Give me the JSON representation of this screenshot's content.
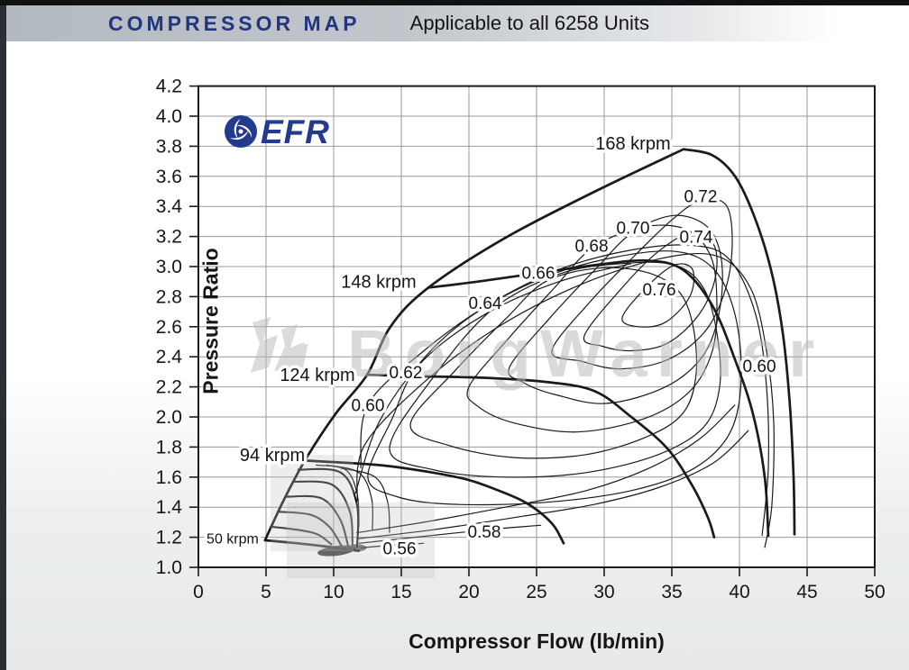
{
  "header": {
    "title": "COMPRESSOR MAP",
    "subtitle": "Applicable to all 6258 Units"
  },
  "logo": {
    "text": "EFR",
    "color": "#233a8f"
  },
  "watermark": {
    "text": "BorgWarner",
    "color": "#b7babb"
  },
  "colors": {
    "line": "#1a1a1a",
    "grid": "#989898",
    "accent_navy": "#23357e",
    "page_gray": "#e7eae9"
  },
  "chart_data": {
    "type": "line",
    "title": "Compressor Map (EFR 6258)",
    "xlabel": "Compressor Flow (lb/min)",
    "ylabel": "Pressure Ratio",
    "xlim": [
      0,
      50
    ],
    "ylim": [
      1.0,
      4.2
    ],
    "grid": true,
    "x_ticks": [
      "0",
      "5",
      "10",
      "15",
      "20",
      "25",
      "30",
      "35",
      "40",
      "45",
      "50"
    ],
    "y_ticks": [
      "4.2",
      "4.0",
      "3.8",
      "3.6",
      "3.4",
      "3.2",
      "3.0",
      "2.8",
      "2.6",
      "2.4",
      "2.2",
      "2.0",
      "1.8",
      "1.6",
      "1.4",
      "1.2",
      "1.0"
    ],
    "speed_lines": [
      {
        "name": "surge-line",
        "label": null,
        "points": [
          [
            4.93,
            1.18
          ],
          [
            6.27,
            1.44
          ],
          [
            7.87,
            1.71
          ],
          [
            10.13,
            2.02
          ],
          [
            12.47,
            2.28
          ],
          [
            14.2,
            2.6
          ],
          [
            17.0,
            2.86
          ],
          [
            22.67,
            3.19
          ],
          [
            29.33,
            3.5
          ],
          [
            35.87,
            3.78
          ]
        ]
      },
      {
        "name": "50-krpm",
        "label": "50 krpm",
        "label_pos": [
          2.53,
          1.2
        ],
        "small": true,
        "points": [
          [
            4.93,
            1.18
          ],
          [
            7.33,
            1.16
          ],
          [
            9.33,
            1.14
          ],
          [
            11.0,
            1.12
          ],
          [
            11.87,
            1.11
          ]
        ]
      },
      {
        "name": "94-krpm",
        "label": "94 krpm",
        "label_pos": [
          5.47,
          1.75
        ],
        "points": [
          [
            7.87,
            1.71
          ],
          [
            13.33,
            1.68
          ],
          [
            17.33,
            1.63
          ],
          [
            20.0,
            1.58
          ],
          [
            22.2,
            1.51
          ],
          [
            24.0,
            1.44
          ],
          [
            25.33,
            1.36
          ],
          [
            26.33,
            1.27
          ],
          [
            27.0,
            1.16
          ]
        ]
      },
      {
        "name": "124-krpm",
        "label": "124 krpm",
        "label_pos": [
          8.8,
          2.28
        ],
        "points": [
          [
            12.47,
            2.28
          ],
          [
            16.67,
            2.27
          ],
          [
            21.33,
            2.26
          ],
          [
            26.0,
            2.23
          ],
          [
            29.33,
            2.17
          ],
          [
            32.0,
            2.0
          ],
          [
            34.67,
            1.79
          ],
          [
            36.53,
            1.54
          ],
          [
            37.67,
            1.33
          ],
          [
            38.13,
            1.2
          ]
        ]
      },
      {
        "name": "148-krpm",
        "label": "148 krpm",
        "label_pos": [
          13.33,
          2.9
        ],
        "points": [
          [
            17.0,
            2.86
          ],
          [
            20.67,
            2.9
          ],
          [
            25.33,
            2.96
          ],
          [
            29.33,
            3.01
          ],
          [
            33.13,
            3.04
          ],
          [
            35.8,
            2.98
          ],
          [
            38.0,
            2.74
          ],
          [
            39.67,
            2.38
          ],
          [
            41.0,
            2.02
          ],
          [
            41.87,
            1.6
          ],
          [
            42.13,
            1.21
          ]
        ]
      },
      {
        "name": "168-krpm",
        "label": "168 krpm",
        "label_pos": [
          32.13,
          3.82
        ],
        "points": [
          [
            35.87,
            3.78
          ],
          [
            38.0,
            3.74
          ],
          [
            39.67,
            3.6
          ],
          [
            41.07,
            3.34
          ],
          [
            42.33,
            2.98
          ],
          [
            43.2,
            2.56
          ],
          [
            43.73,
            2.08
          ],
          [
            44.0,
            1.6
          ],
          [
            44.07,
            1.22
          ]
        ]
      }
    ],
    "minor_speed_lines": [
      [
        [
          5.4,
          1.27
        ],
        [
          7.33,
          1.25
        ],
        [
          8.8,
          1.22
        ],
        [
          9.87,
          1.15
        ]
      ],
      [
        [
          5.93,
          1.37
        ],
        [
          8.27,
          1.35
        ],
        [
          9.67,
          1.27
        ],
        [
          10.6,
          1.14
        ]
      ],
      [
        [
          6.47,
          1.47
        ],
        [
          9.07,
          1.46
        ],
        [
          10.47,
          1.32
        ],
        [
          11.07,
          1.14
        ]
      ],
      [
        [
          6.93,
          1.57
        ],
        [
          9.87,
          1.55
        ],
        [
          11.2,
          1.37
        ],
        [
          11.4,
          1.14
        ]
      ],
      [
        [
          7.33,
          1.65
        ],
        [
          10.53,
          1.63
        ],
        [
          11.73,
          1.41
        ],
        [
          11.73,
          1.13
        ]
      ]
    ],
    "cluster_hooks": [
      [
        [
          8.67,
          1.68
        ],
        [
          10.87,
          1.65
        ],
        [
          11.73,
          1.49
        ],
        [
          11.87,
          1.27
        ]
      ],
      [
        [
          9.47,
          1.68
        ],
        [
          11.87,
          1.63
        ],
        [
          12.8,
          1.46
        ],
        [
          12.87,
          1.25
        ]
      ],
      [
        [
          10.53,
          1.66
        ],
        [
          13.07,
          1.6
        ],
        [
          14.0,
          1.43
        ],
        [
          14.13,
          1.23
        ]
      ]
    ],
    "efficiency_contours": [
      {
        "value": 0.56,
        "part": "fan-1",
        "closed": false,
        "points": [
          [
            12.0,
            1.13
          ],
          [
            14.67,
            1.15
          ],
          [
            16.67,
            1.16
          ]
        ]
      },
      {
        "value": 0.56,
        "part": "fan-2",
        "closed": false,
        "points": [
          [
            11.87,
            1.16
          ],
          [
            16.0,
            1.2
          ],
          [
            21.33,
            1.25
          ],
          [
            25.33,
            1.28
          ]
        ]
      },
      {
        "value": 0.56,
        "part": "upper",
        "closed": false,
        "points": [
          [
            11.6,
            1.49
          ],
          [
            13.33,
            1.96
          ],
          [
            16.67,
            2.38
          ],
          [
            21.33,
            2.69
          ],
          [
            26.67,
            2.9
          ],
          [
            32.0,
            3.02
          ]
        ]
      },
      {
        "value": 0.58,
        "part": "bottom",
        "closed": false,
        "points": [
          [
            11.73,
            1.19
          ],
          [
            17.33,
            1.25
          ],
          [
            24.0,
            1.34
          ],
          [
            29.33,
            1.42
          ],
          [
            34.0,
            1.53
          ],
          [
            38.0,
            1.69
          ],
          [
            40.67,
            1.91
          ]
        ]
      },
      {
        "value": 0.58,
        "part": "upper-flank",
        "closed": false,
        "points": [
          [
            11.73,
            1.44
          ],
          [
            12.27,
            1.81
          ],
          [
            16.67,
            2.23
          ],
          [
            22.0,
            2.59
          ],
          [
            28.0,
            2.87
          ],
          [
            34.0,
            3.05
          ],
          [
            38.33,
            3.07
          ],
          [
            40.8,
            2.86
          ],
          [
            42.0,
            2.44
          ],
          [
            42.53,
            1.96
          ],
          [
            42.4,
            1.42
          ],
          [
            41.87,
            1.13
          ]
        ]
      },
      {
        "value": 0.6,
        "part": "bottom",
        "closed": false,
        "points": [
          [
            11.67,
            1.23
          ],
          [
            16.67,
            1.3
          ],
          [
            22.67,
            1.4
          ],
          [
            28.67,
            1.51
          ],
          [
            33.33,
            1.66
          ],
          [
            37.0,
            1.85
          ],
          [
            39.67,
            2.08
          ]
        ]
      },
      {
        "value": 0.6,
        "part": "upper-flank",
        "closed": false,
        "points": [
          [
            12.0,
            1.66
          ],
          [
            12.53,
            2.08
          ],
          [
            16.67,
            2.44
          ],
          [
            21.33,
            2.74
          ],
          [
            26.67,
            2.98
          ],
          [
            32.0,
            3.11
          ],
          [
            36.67,
            3.14
          ],
          [
            39.33,
            3.04
          ],
          [
            41.2,
            2.68
          ],
          [
            42.0,
            2.2
          ],
          [
            42.13,
            1.66
          ],
          [
            41.67,
            1.21
          ]
        ]
      },
      {
        "value": 0.62,
        "closed": true,
        "points": [
          [
            12.53,
            1.6
          ],
          [
            14.33,
            1.99
          ],
          [
            16.13,
            2.33
          ],
          [
            20.0,
            2.66
          ],
          [
            25.33,
            2.92
          ],
          [
            30.67,
            3.06
          ],
          [
            35.33,
            3.1
          ],
          [
            38.13,
            2.98
          ],
          [
            39.67,
            2.68
          ],
          [
            40.13,
            2.26
          ],
          [
            39.33,
            1.9
          ],
          [
            36.67,
            1.66
          ],
          [
            32.0,
            1.51
          ],
          [
            25.33,
            1.43
          ],
          [
            18.67,
            1.42
          ],
          [
            14.67,
            1.47
          ]
        ]
      },
      {
        "value": 0.64,
        "closed": true,
        "points": [
          [
            14.13,
            1.79
          ],
          [
            17.33,
            2.26
          ],
          [
            21.67,
            2.71
          ],
          [
            26.67,
            2.95
          ],
          [
            31.33,
            3.02
          ],
          [
            35.2,
            3.01
          ],
          [
            37.33,
            2.86
          ],
          [
            38.33,
            2.56
          ],
          [
            38.53,
            2.2
          ],
          [
            37.33,
            1.93
          ],
          [
            34.0,
            1.75
          ],
          [
            28.67,
            1.63
          ],
          [
            22.67,
            1.6
          ],
          [
            17.33,
            1.65
          ]
        ]
      },
      {
        "value": 0.66,
        "closed": true,
        "points": [
          [
            15.67,
            1.95
          ],
          [
            19.0,
            2.31
          ],
          [
            22.8,
            2.66
          ],
          [
            25.67,
            2.9
          ],
          [
            29.67,
            2.99
          ],
          [
            33.2,
            2.96
          ],
          [
            35.47,
            2.84
          ],
          [
            36.53,
            2.62
          ],
          [
            36.8,
            2.29
          ],
          [
            35.87,
            2.03
          ],
          [
            33.2,
            1.87
          ],
          [
            28.67,
            1.75
          ],
          [
            23.33,
            1.73
          ],
          [
            18.53,
            1.81
          ]
        ]
      },
      {
        "value": 0.68,
        "closed": true,
        "points": [
          [
            20.0,
            2.2
          ],
          [
            23.0,
            2.53
          ],
          [
            26.33,
            2.86
          ],
          [
            29.07,
            3.12
          ],
          [
            32.67,
            3.26
          ],
          [
            36.0,
            3.25
          ],
          [
            37.87,
            3.07
          ],
          [
            38.33,
            2.77
          ],
          [
            38.0,
            2.44
          ],
          [
            36.33,
            2.17
          ],
          [
            33.0,
            1.99
          ],
          [
            28.0,
            1.9
          ],
          [
            23.33,
            1.96
          ],
          [
            20.67,
            2.07
          ]
        ]
      },
      {
        "value": 0.7,
        "closed": true,
        "points": [
          [
            23.0,
            2.33
          ],
          [
            26.0,
            2.66
          ],
          [
            29.33,
            2.98
          ],
          [
            32.13,
            3.23
          ],
          [
            35.2,
            3.34
          ],
          [
            37.67,
            3.26
          ],
          [
            38.67,
            3.04
          ],
          [
            38.53,
            2.71
          ],
          [
            37.33,
            2.41
          ],
          [
            34.53,
            2.2
          ],
          [
            30.13,
            2.09
          ],
          [
            26.33,
            2.15
          ],
          [
            24.0,
            2.23
          ]
        ]
      },
      {
        "value": 0.72,
        "closed": true,
        "points": [
          [
            26.13,
            2.44
          ],
          [
            29.0,
            2.77
          ],
          [
            32.0,
            3.05
          ],
          [
            35.0,
            3.31
          ],
          [
            37.13,
            3.44
          ],
          [
            39.0,
            3.41
          ],
          [
            39.47,
            3.17
          ],
          [
            39.0,
            2.86
          ],
          [
            37.47,
            2.57
          ],
          [
            34.67,
            2.38
          ],
          [
            31.2,
            2.32
          ],
          [
            28.33,
            2.37
          ]
        ]
      },
      {
        "value": 0.74,
        "closed": true,
        "points": [
          [
            28.53,
            2.54
          ],
          [
            31.33,
            2.86
          ],
          [
            34.0,
            3.1
          ],
          [
            36.53,
            3.23
          ],
          [
            38.13,
            3.14
          ],
          [
            38.2,
            2.92
          ],
          [
            37.0,
            2.68
          ],
          [
            34.67,
            2.49
          ],
          [
            32.0,
            2.44
          ],
          [
            29.87,
            2.47
          ]
        ]
      },
      {
        "value": 0.76,
        "closed": true,
        "points": [
          [
            31.33,
            2.66
          ],
          [
            33.2,
            2.87
          ],
          [
            35.2,
            3.01
          ],
          [
            36.53,
            2.98
          ],
          [
            36.33,
            2.8
          ],
          [
            34.53,
            2.63
          ],
          [
            32.53,
            2.6
          ]
        ]
      }
    ],
    "efficiency_labels": [
      {
        "text": "0.56",
        "pos": [
          14.87,
          1.13
        ]
      },
      {
        "text": "0.58",
        "pos": [
          21.13,
          1.24
        ]
      },
      {
        "text": "0.60",
        "pos": [
          12.53,
          2.08
        ]
      },
      {
        "text": "0.60",
        "pos": [
          41.47,
          2.34
        ]
      },
      {
        "text": "0.62",
        "pos": [
          15.33,
          2.3
        ]
      },
      {
        "text": "0.64",
        "pos": [
          21.2,
          2.76
        ]
      },
      {
        "text": "0.66",
        "pos": [
          25.13,
          2.96
        ]
      },
      {
        "text": "0.68",
        "pos": [
          29.07,
          3.14
        ]
      },
      {
        "text": "0.70",
        "pos": [
          32.13,
          3.26
        ]
      },
      {
        "text": "0.72",
        "pos": [
          37.13,
          3.47
        ]
      },
      {
        "text": "0.74",
        "pos": [
          36.8,
          3.2
        ]
      },
      {
        "text": "0.76",
        "pos": [
          34.07,
          2.85
        ]
      }
    ]
  }
}
